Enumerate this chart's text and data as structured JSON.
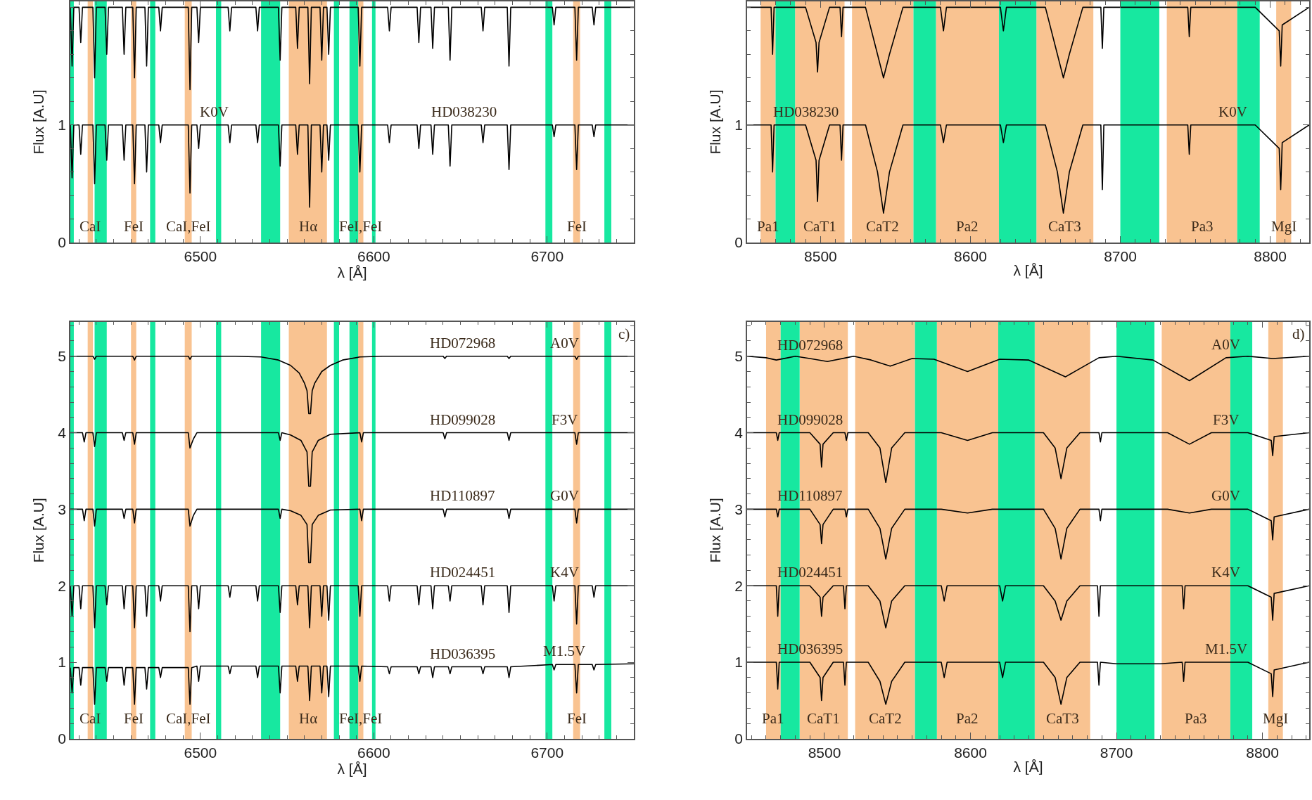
{
  "chart_data": [
    {
      "type": "line",
      "xlabel": "λ [Å]",
      "ylabel": "Flux [A.U]",
      "xlim": [
        6425,
        6750
      ],
      "ylim": [
        0,
        2.05
      ],
      "xticks": [
        6500,
        6600,
        6700
      ],
      "yticks": [
        0,
        1
      ],
      "grid": false,
      "marker": "none",
      "line_style": "solid",
      "series": [
        {
          "color": "#000000",
          "x": [
            6425,
            6426,
            6427,
            6430,
            6431,
            6432,
            6438,
            6439,
            6440,
            6445,
            6446,
            6447,
            6455,
            6456,
            6457,
            6461,
            6462,
            6463,
            6468,
            6469,
            6470,
            6476,
            6477,
            6478,
            6493,
            6494,
            6495,
            6498,
            6499,
            6500,
            6516,
            6517,
            6518,
            6532,
            6533,
            6534,
            6545,
            6546,
            6547,
            6555,
            6556,
            6557,
            6562,
            6563,
            6564,
            6569,
            6570,
            6571,
            6573,
            6574,
            6575,
            6591,
            6592,
            6593,
            6608,
            6609,
            6610,
            6625,
            6626,
            6627,
            6633,
            6634,
            6635,
            6643,
            6644,
            6645,
            6662,
            6663,
            6664,
            6677,
            6678,
            6679,
            6703,
            6704,
            6705,
            6716,
            6717,
            6718,
            6726,
            6727,
            6728,
            6750
          ],
          "values": [
            2,
            1.5,
            2,
            2,
            1.7,
            2,
            2,
            1.4,
            2,
            2,
            1.6,
            2,
            2,
            1.6,
            2,
            2,
            1.4,
            2,
            2,
            1.5,
            2,
            2,
            1.8,
            2,
            2,
            1.3,
            2,
            2,
            1.7,
            2,
            2,
            1.8,
            2,
            2,
            1.8,
            2,
            2,
            1.55,
            2,
            2,
            1.65,
            2,
            2,
            1.35,
            2,
            2,
            1.55,
            2,
            2,
            1.6,
            2,
            2,
            1.5,
            2,
            2,
            1.8,
            2,
            2,
            1.7,
            2,
            2,
            1.65,
            2,
            2,
            1.55,
            2,
            2,
            1.8,
            2,
            2,
            1.5,
            2,
            2,
            1.85,
            2,
            2,
            1.55,
            2,
            2,
            1.85,
            2,
            2
          ]
        },
        {
          "color": "#000000",
          "x": [
            6425,
            6426,
            6427,
            6430,
            6431,
            6432,
            6438,
            6439,
            6440,
            6445,
            6446,
            6447,
            6455,
            6456,
            6457,
            6461,
            6462,
            6463,
            6468,
            6469,
            6470,
            6476,
            6477,
            6478,
            6493,
            6494,
            6495,
            6498,
            6499,
            6500,
            6516,
            6517,
            6518,
            6532,
            6533,
            6534,
            6545,
            6546,
            6547,
            6555,
            6556,
            6557,
            6562,
            6563,
            6564,
            6569,
            6570,
            6571,
            6573,
            6574,
            6575,
            6591,
            6592,
            6593,
            6608,
            6609,
            6610,
            6625,
            6626,
            6627,
            6633,
            6634,
            6635,
            6643,
            6644,
            6645,
            6662,
            6663,
            6664,
            6677,
            6678,
            6679,
            6703,
            6704,
            6705,
            6716,
            6717,
            6718,
            6726,
            6727,
            6728,
            6750
          ],
          "values": [
            1,
            0.55,
            1,
            1,
            0.75,
            1,
            1,
            0.5,
            1,
            1,
            0.7,
            1,
            1,
            0.7,
            1,
            1,
            0.5,
            1,
            1,
            0.6,
            1,
            1,
            0.85,
            1,
            1,
            0.42,
            1,
            1,
            0.8,
            1,
            1,
            0.85,
            1,
            1,
            0.85,
            1,
            1,
            0.65,
            1,
            1,
            0.75,
            1,
            1,
            0.3,
            1,
            1,
            0.6,
            1,
            1,
            0.7,
            1,
            1,
            0.6,
            1,
            1,
            0.85,
            1,
            1,
            0.8,
            1,
            1,
            0.75,
            1,
            1,
            0.65,
            1,
            1,
            0.85,
            1,
            1,
            0.62,
            1,
            1,
            0.9,
            1,
            1,
            0.62,
            1,
            1,
            0.9,
            1,
            1
          ]
        }
      ],
      "bands": [
        {
          "axis": "x",
          "from": 6435,
          "to": 6438,
          "color": "#f9c391",
          "label": "CaI"
        },
        {
          "axis": "x",
          "from": 6460,
          "to": 6463,
          "color": "#f9c391",
          "label": "FeI"
        },
        {
          "axis": "x",
          "from": 6491,
          "to": 6495,
          "color": "#f9c391",
          "label": "CaI,FeI"
        },
        {
          "axis": "x",
          "from": 6551,
          "to": 6573,
          "color": "#f9c391",
          "label": "Hα"
        },
        {
          "axis": "x",
          "from": 6591,
          "to": 6594,
          "color": "#f9c391",
          "label": "FeI,FeI"
        },
        {
          "axis": "x",
          "from": 6715,
          "to": 6719,
          "color": "#f9c391",
          "label": "FeI"
        },
        {
          "axis": "x",
          "from": 6425,
          "to": 6427,
          "color": "#17e8a0"
        },
        {
          "axis": "x",
          "from": 6439,
          "to": 6446,
          "color": "#17e8a0"
        },
        {
          "axis": "x",
          "from": 6471,
          "to": 6474,
          "color": "#17e8a0"
        },
        {
          "axis": "x",
          "from": 6509,
          "to": 6512,
          "color": "#17e8a0"
        },
        {
          "axis": "x",
          "from": 6535,
          "to": 6546,
          "color": "#17e8a0"
        },
        {
          "axis": "x",
          "from": 6577,
          "to": 6580,
          "color": "#17e8a0"
        },
        {
          "axis": "x",
          "from": 6586,
          "to": 6591,
          "color": "#17e8a0"
        },
        {
          "axis": "x",
          "from": 6599,
          "to": 6601,
          "color": "#17e8a0"
        },
        {
          "axis": "x",
          "from": 6699,
          "to": 6703,
          "color": "#17e8a0"
        },
        {
          "axis": "x",
          "from": 6733,
          "to": 6737,
          "color": "#17e8a0"
        }
      ],
      "annotations": [
        {
          "text": "K0V",
          "x": 6508,
          "y": 1
        },
        {
          "text": "HD038230",
          "x": 6652,
          "y": 1
        }
      ]
    },
    {
      "type": "line",
      "xlabel": "λ [Å]",
      "ylabel": "Flux [A.U]",
      "xlim": [
        8451,
        8826
      ],
      "ylim": [
        0,
        2.05
      ],
      "xticks": [
        8500,
        8600,
        8700,
        8800
      ],
      "yticks": [
        0,
        1
      ],
      "grid": false,
      "marker": "none",
      "line_style": "solid",
      "series": [
        {
          "color": "#000000",
          "x": [
            8451,
            8467,
            8468,
            8469,
            8490,
            8497,
            8498,
            8499,
            8506,
            8513,
            8514,
            8515,
            8530,
            8538,
            8542,
            8546,
            8555,
            8580,
            8582,
            8584,
            8620,
            8622,
            8624,
            8650,
            8658,
            8662,
            8666,
            8675,
            8687,
            8688,
            8689,
            8700,
            8730,
            8745,
            8746,
            8747,
            8790,
            8806,
            8807,
            8808,
            8826
          ],
          "values": [
            2,
            2,
            1.6,
            2,
            2,
            1.7,
            1.45,
            1.7,
            2,
            2,
            1.75,
            2,
            2,
            1.6,
            1.4,
            1.6,
            2,
            2,
            1.8,
            2,
            2,
            1.8,
            2,
            2,
            1.6,
            1.4,
            1.6,
            2,
            2,
            1.65,
            2,
            2,
            2,
            2,
            1.75,
            2,
            2,
            1.8,
            1.5,
            1.85,
            2
          ]
        },
        {
          "color": "#000000",
          "x": [
            8451,
            8467,
            8468,
            8469,
            8490,
            8497,
            8498,
            8499,
            8506,
            8513,
            8514,
            8515,
            8530,
            8538,
            8542,
            8546,
            8555,
            8580,
            8582,
            8584,
            8620,
            8622,
            8624,
            8650,
            8658,
            8662,
            8666,
            8675,
            8687,
            8688,
            8689,
            8700,
            8730,
            8745,
            8746,
            8747,
            8790,
            8806,
            8807,
            8808,
            8826
          ],
          "values": [
            1,
            1,
            0.6,
            1,
            1,
            0.7,
            0.35,
            0.7,
            1,
            1,
            0.7,
            1,
            1,
            0.6,
            0.25,
            0.6,
            1,
            1,
            0.85,
            1,
            1,
            0.85,
            1,
            1,
            0.6,
            0.25,
            0.6,
            1,
            1,
            0.45,
            1,
            1,
            1,
            1,
            0.75,
            1,
            1,
            0.8,
            0.45,
            0.85,
            1
          ]
        }
      ],
      "bands": [
        {
          "axis": "x",
          "from": 8460,
          "to": 8470,
          "color": "#f9c391",
          "label": "Pa1"
        },
        {
          "axis": "x",
          "from": 8483,
          "to": 8516,
          "color": "#f9c391",
          "label": "CaT1"
        },
        {
          "axis": "x",
          "from": 8521,
          "to": 8562,
          "color": "#f9c391",
          "label": "CaT2"
        },
        {
          "axis": "x",
          "from": 8577,
          "to": 8619,
          "color": "#f9c391",
          "label": "Pa2"
        },
        {
          "axis": "x",
          "from": 8644,
          "to": 8682,
          "color": "#f9c391",
          "label": "CaT3"
        },
        {
          "axis": "x",
          "from": 8731,
          "to": 8778,
          "color": "#f9c391",
          "label": "Pa3"
        },
        {
          "axis": "x",
          "from": 8804,
          "to": 8814,
          "color": "#f9c391",
          "label": "MgI"
        },
        {
          "axis": "x",
          "from": 8470,
          "to": 8483,
          "color": "#17e8a0"
        },
        {
          "axis": "x",
          "from": 8562,
          "to": 8577,
          "color": "#17e8a0"
        },
        {
          "axis": "x",
          "from": 8619,
          "to": 8644,
          "color": "#17e8a0"
        },
        {
          "axis": "x",
          "from": 8700,
          "to": 8726,
          "color": "#17e8a0"
        },
        {
          "axis": "x",
          "from": 8778,
          "to": 8793,
          "color": "#17e8a0"
        }
      ],
      "annotations": [
        {
          "text": "HD038230",
          "x": 8490,
          "y": 1
        },
        {
          "text": "K0V",
          "x": 8775,
          "y": 1
        }
      ]
    },
    {
      "type": "line",
      "xlabel": "λ [Å]",
      "ylabel": "Flux [A.U]",
      "xlim": [
        6425,
        6750
      ],
      "ylim": [
        0,
        5.45
      ],
      "xticks": [
        6500,
        6600,
        6700
      ],
      "yticks": [
        0,
        1,
        2,
        3,
        4,
        5
      ],
      "grid": false,
      "marker": "none",
      "line_style": "solid",
      "series": [
        {
          "color": "#000000",
          "x": [
            6425,
            6438,
            6439,
            6440,
            6461,
            6462,
            6463,
            6493,
            6494,
            6495,
            6520,
            6535,
            6545,
            6552,
            6557,
            6560,
            6561.5,
            6562.5,
            6563.5,
            6564.5,
            6566,
            6570,
            6575,
            6582,
            6592,
            6605,
            6640,
            6641,
            6642,
            6677,
            6678,
            6679,
            6716,
            6717,
            6718,
            6750
          ],
          "values": [
            5,
            5,
            4.96,
            5,
            5,
            4.95,
            5,
            5,
            4.96,
            5,
            5,
            4.99,
            4.95,
            4.88,
            4.78,
            4.65,
            4.55,
            4.25,
            4.25,
            4.55,
            4.65,
            4.8,
            4.88,
            4.95,
            4.99,
            5,
            5,
            4.97,
            5,
            5,
            4.97,
            5,
            5,
            4.96,
            5,
            5
          ]
        },
        {
          "color": "#000000",
          "x": [
            6425,
            6432,
            6433,
            6434,
            6438,
            6439,
            6440,
            6455,
            6456,
            6457,
            6461,
            6462,
            6463,
            6493,
            6494,
            6496,
            6498,
            6520,
            6545,
            6546,
            6547,
            6552,
            6558,
            6561.5,
            6562.5,
            6563.5,
            6564.5,
            6568,
            6575,
            6592,
            6593,
            6594,
            6640,
            6641,
            6642,
            6677,
            6678,
            6679,
            6716,
            6717,
            6718,
            6750
          ],
          "values": [
            4,
            4,
            3.88,
            4,
            4,
            3.82,
            4,
            4,
            3.9,
            4,
            4,
            3.85,
            4,
            4,
            3.8,
            3.92,
            4,
            4,
            4,
            3.9,
            4,
            3.97,
            3.9,
            3.75,
            3.3,
            3.3,
            3.75,
            3.9,
            3.98,
            4,
            3.88,
            4,
            4,
            3.92,
            4,
            4,
            3.9,
            4,
            4,
            3.85,
            4,
            4
          ]
        },
        {
          "color": "#000000",
          "x": [
            6425,
            6432,
            6433,
            6434,
            6438,
            6439,
            6440,
            6455,
            6456,
            6457,
            6461,
            6462,
            6463,
            6493,
            6494,
            6496,
            6498,
            6520,
            6545,
            6546,
            6547,
            6552,
            6558,
            6561.5,
            6562.5,
            6563.5,
            6564.5,
            6568,
            6575,
            6592,
            6593,
            6594,
            6640,
            6641,
            6642,
            6677,
            6678,
            6679,
            6716,
            6717,
            6718,
            6750
          ],
          "values": [
            3,
            3,
            2.85,
            3,
            3,
            2.78,
            3,
            3,
            2.88,
            3,
            3,
            2.82,
            3,
            3,
            2.78,
            2.92,
            3,
            3,
            3,
            2.88,
            3,
            2.98,
            2.92,
            2.8,
            2.3,
            2.3,
            2.8,
            2.92,
            2.99,
            3,
            2.85,
            3,
            3,
            2.9,
            3,
            3,
            2.88,
            3,
            3,
            2.82,
            3,
            3
          ]
        },
        {
          "color": "#000000",
          "x": [
            6425,
            6426,
            6427,
            6430,
            6431,
            6432,
            6438,
            6439,
            6440,
            6445,
            6446,
            6447,
            6455,
            6456,
            6457,
            6461,
            6462,
            6463,
            6468,
            6469,
            6470,
            6476,
            6477,
            6478,
            6493,
            6494,
            6495,
            6498,
            6499,
            6500,
            6516,
            6517,
            6518,
            6532,
            6533,
            6534,
            6545,
            6546,
            6547,
            6555,
            6556,
            6557,
            6562,
            6563,
            6564,
            6569,
            6570,
            6571,
            6573,
            6574,
            6575,
            6591,
            6592,
            6593,
            6608,
            6609,
            6610,
            6625,
            6626,
            6627,
            6633,
            6634,
            6635,
            6643,
            6644,
            6645,
            6662,
            6663,
            6664,
            6677,
            6678,
            6679,
            6703,
            6704,
            6705,
            6716,
            6717,
            6718,
            6726,
            6727,
            6728,
            6750
          ],
          "values": [
            2,
            1.6,
            2,
            2,
            1.7,
            2,
            2,
            1.45,
            2,
            2,
            1.75,
            2,
            2,
            1.7,
            2,
            2,
            1.45,
            2,
            2,
            1.6,
            2,
            2,
            1.8,
            2,
            2,
            1.4,
            2,
            2,
            1.7,
            2,
            2,
            1.85,
            2,
            2,
            1.8,
            2,
            2,
            1.65,
            2,
            2,
            1.75,
            2,
            2,
            1.45,
            2,
            2,
            1.6,
            2,
            2,
            1.55,
            2,
            2,
            1.6,
            2,
            2,
            1.8,
            2,
            2,
            1.75,
            2,
            2,
            1.7,
            2,
            2,
            1.8,
            2,
            2,
            1.75,
            2,
            2,
            1.65,
            2,
            2,
            1.8,
            2,
            2,
            1.5,
            2,
            2,
            1.85,
            2,
            2
          ]
        },
        {
          "color": "#000000",
          "x": [
            6425,
            6426,
            6427,
            6430,
            6431,
            6432,
            6438,
            6439,
            6440,
            6445,
            6446,
            6447,
            6455,
            6456,
            6457,
            6461,
            6462,
            6463,
            6468,
            6469,
            6470,
            6476,
            6477,
            6478,
            6493,
            6494,
            6495,
            6498,
            6499,
            6500,
            6516,
            6517,
            6518,
            6532,
            6533,
            6534,
            6545,
            6546,
            6547,
            6555,
            6556,
            6557,
            6562,
            6563,
            6564,
            6569,
            6570,
            6571,
            6573,
            6574,
            6575,
            6591,
            6592,
            6593,
            6608,
            6609,
            6610,
            6625,
            6626,
            6627,
            6633,
            6634,
            6635,
            6643,
            6644,
            6645,
            6662,
            6663,
            6664,
            6677,
            6678,
            6679,
            6703,
            6704,
            6705,
            6716,
            6717,
            6718,
            6726,
            6727,
            6728,
            6750
          ],
          "values": [
            0.93,
            0.6,
            0.93,
            0.93,
            0.7,
            0.93,
            0.93,
            0.45,
            0.93,
            0.93,
            0.75,
            0.93,
            0.93,
            0.7,
            0.93,
            0.93,
            0.45,
            0.93,
            0.93,
            0.65,
            0.93,
            0.93,
            0.8,
            0.93,
            0.93,
            0.45,
            0.93,
            0.95,
            0.75,
            0.95,
            0.95,
            0.85,
            0.95,
            0.95,
            0.8,
            0.95,
            0.95,
            0.6,
            0.95,
            0.95,
            0.75,
            0.95,
            0.95,
            0.5,
            0.95,
            0.95,
            0.6,
            0.95,
            0.95,
            0.55,
            0.95,
            0.95,
            0.75,
            0.95,
            0.94,
            0.85,
            0.94,
            0.94,
            0.85,
            0.94,
            0.94,
            0.8,
            0.94,
            0.94,
            0.85,
            0.94,
            0.94,
            0.85,
            0.94,
            0.94,
            0.8,
            0.94,
            0.97,
            0.9,
            0.97,
            0.97,
            0.6,
            0.97,
            0.97,
            0.9,
            0.97,
            0.98
          ]
        }
      ],
      "bands": [
        {
          "axis": "x",
          "from": 6435,
          "to": 6438,
          "color": "#f9c391",
          "label": "CaI"
        },
        {
          "axis": "x",
          "from": 6460,
          "to": 6463,
          "color": "#f9c391",
          "label": "FeI"
        },
        {
          "axis": "x",
          "from": 6491,
          "to": 6495,
          "color": "#f9c391",
          "label": "CaI,FeI"
        },
        {
          "axis": "x",
          "from": 6551,
          "to": 6573,
          "color": "#f9c391",
          "label": "Hα"
        },
        {
          "axis": "x",
          "from": 6591,
          "to": 6594,
          "color": "#f9c391",
          "label": "FeI,FeI"
        },
        {
          "axis": "x",
          "from": 6715,
          "to": 6719,
          "color": "#f9c391",
          "label": "FeI"
        },
        {
          "axis": "x",
          "from": 6425,
          "to": 6427,
          "color": "#17e8a0"
        },
        {
          "axis": "x",
          "from": 6439,
          "to": 6446,
          "color": "#17e8a0"
        },
        {
          "axis": "x",
          "from": 6471,
          "to": 6474,
          "color": "#17e8a0"
        },
        {
          "axis": "x",
          "from": 6509,
          "to": 6512,
          "color": "#17e8a0"
        },
        {
          "axis": "x",
          "from": 6535,
          "to": 6546,
          "color": "#17e8a0"
        },
        {
          "axis": "x",
          "from": 6577,
          "to": 6580,
          "color": "#17e8a0"
        },
        {
          "axis": "x",
          "from": 6586,
          "to": 6591,
          "color": "#17e8a0"
        },
        {
          "axis": "x",
          "from": 6599,
          "to": 6601,
          "color": "#17e8a0"
        },
        {
          "axis": "x",
          "from": 6699,
          "to": 6703,
          "color": "#17e8a0"
        },
        {
          "axis": "x",
          "from": 6733,
          "to": 6737,
          "color": "#17e8a0"
        }
      ],
      "annotations": [
        {
          "text": "HD072968",
          "x": 6651,
          "y": 5
        },
        {
          "text": "A0V",
          "x": 6710,
          "y": 5
        },
        "c)",
        {
          "text": "HD099028",
          "x": 6651,
          "y": 4
        },
        {
          "text": "F3V",
          "x": 6710,
          "y": 4
        },
        {
          "text": "HD110897",
          "x": 6651,
          "y": 3
        },
        {
          "text": "G0V",
          "x": 6710,
          "y": 3
        },
        {
          "text": "HD024451",
          "x": 6651,
          "y": 2
        },
        {
          "text": "K4V",
          "x": 6710,
          "y": 2
        },
        {
          "text": "HD036395",
          "x": 6651,
          "y": 0.94
        },
        {
          "text": "M1.5V",
          "x": 6710,
          "y": 0.97
        }
      ]
    },
    {
      "type": "line",
      "xlabel": "λ [Å]",
      "ylabel": "Flux [A.U]",
      "xlim": [
        8447,
        8832
      ],
      "ylim": [
        0,
        5.45
      ],
      "xticks": [
        8500,
        8600,
        8700,
        8800
      ],
      "yticks": [
        0,
        1,
        2,
        3,
        4,
        5
      ],
      "grid": false,
      "marker": "none",
      "line_style": "solid",
      "series": [
        {
          "color": "#000000",
          "x": [
            8447,
            8460,
            8467,
            8475,
            8480,
            8490,
            8502,
            8515,
            8520,
            8532,
            8545,
            8560,
            8575,
            8598,
            8620,
            8640,
            8665,
            8688,
            8700,
            8725,
            8750,
            8775,
            8790,
            8807,
            8832
          ],
          "values": [
            5,
            4.98,
            4.95,
            4.98,
            5,
            4.97,
            4.93,
            4.98,
            5,
            4.95,
            4.87,
            4.97,
            4.96,
            4.8,
            4.96,
            4.95,
            4.73,
            4.98,
            5,
            4.95,
            4.68,
            4.98,
            5,
            4.97,
            5
          ]
        },
        {
          "color": "#000000",
          "x": [
            8447,
            8467,
            8468,
            8469,
            8490,
            8497,
            8498,
            8499,
            8506,
            8514,
            8515,
            8516,
            8530,
            8538,
            8542,
            8546,
            8555,
            8580,
            8598,
            8615,
            8650,
            8658,
            8662,
            8666,
            8675,
            8688,
            8689,
            8690,
            8735,
            8750,
            8765,
            8790,
            8806,
            8807,
            8808,
            8832
          ],
          "values": [
            4,
            4,
            3.9,
            4,
            4,
            3.85,
            3.55,
            3.85,
            4,
            4,
            3.9,
            4,
            4,
            3.8,
            3.35,
            3.8,
            4,
            4,
            3.9,
            4,
            4,
            3.8,
            3.4,
            3.8,
            4,
            4,
            3.88,
            4,
            4,
            3.85,
            4,
            4,
            3.9,
            3.7,
            3.95,
            4
          ]
        },
        {
          "color": "#000000",
          "x": [
            8447,
            8467,
            8468,
            8469,
            8490,
            8497,
            8498,
            8499,
            8506,
            8514,
            8515,
            8516,
            8530,
            8538,
            8542,
            8546,
            8555,
            8580,
            8598,
            8615,
            8650,
            8658,
            8662,
            8666,
            8675,
            8688,
            8689,
            8690,
            8735,
            8750,
            8765,
            8790,
            8806,
            8807,
            8808,
            8832
          ],
          "values": [
            3,
            3,
            2.9,
            3,
            3,
            2.8,
            2.55,
            2.8,
            3,
            3,
            2.9,
            3,
            3,
            2.75,
            2.35,
            2.75,
            3,
            3,
            2.95,
            3,
            3,
            2.75,
            2.35,
            2.75,
            3,
            3,
            2.85,
            3,
            3,
            2.95,
            3,
            3,
            2.85,
            2.6,
            2.9,
            3
          ]
        },
        {
          "color": "#000000",
          "x": [
            8447,
            8467,
            8468,
            8469,
            8490,
            8497,
            8498,
            8499,
            8506,
            8513,
            8514,
            8515,
            8530,
            8538,
            8542,
            8546,
            8555,
            8580,
            8582,
            8584,
            8620,
            8622,
            8624,
            8650,
            8658,
            8662,
            8666,
            8675,
            8687,
            8688,
            8689,
            8700,
            8730,
            8745,
            8746,
            8747,
            8790,
            8806,
            8807,
            8808,
            8832
          ],
          "values": [
            2,
            2,
            1.6,
            2,
            2,
            1.85,
            1.6,
            1.85,
            2,
            2,
            1.7,
            2,
            2,
            1.8,
            1.45,
            1.8,
            2,
            2,
            1.8,
            2,
            2,
            1.8,
            2,
            2,
            1.8,
            1.55,
            1.8,
            2,
            2,
            1.6,
            2,
            2,
            2,
            2,
            1.7,
            2,
            2,
            1.85,
            1.55,
            1.9,
            2
          ]
        },
        {
          "color": "#000000",
          "x": [
            8447,
            8467,
            8468,
            8469,
            8490,
            8497,
            8498,
            8499,
            8506,
            8513,
            8514,
            8515,
            8530,
            8538,
            8542,
            8546,
            8555,
            8580,
            8582,
            8584,
            8620,
            8622,
            8624,
            8650,
            8658,
            8662,
            8666,
            8675,
            8687,
            8688,
            8689,
            8700,
            8730,
            8745,
            8746,
            8747,
            8790,
            8806,
            8807,
            8808,
            8832
          ],
          "values": [
            1,
            1,
            0.65,
            1,
            1,
            0.8,
            0.5,
            0.8,
            1,
            1,
            0.7,
            1,
            1,
            0.75,
            0.45,
            0.75,
            1,
            1,
            0.8,
            1,
            1,
            0.8,
            1,
            1,
            0.8,
            0.45,
            0.8,
            1,
            1,
            0.7,
            1,
            0.98,
            0.98,
            1,
            0.75,
            1,
            1,
            0.85,
            0.55,
            0.9,
            1
          ]
        }
      ],
      "bands": [
        {
          "axis": "x",
          "from": 8460,
          "to": 8470,
          "color": "#f9c391",
          "label": "Pa1"
        },
        {
          "axis": "x",
          "from": 8483,
          "to": 8516,
          "color": "#f9c391",
          "label": "CaT1"
        },
        {
          "axis": "x",
          "from": 8521,
          "to": 8562,
          "color": "#f9c391",
          "label": "CaT2"
        },
        {
          "axis": "x",
          "from": 8577,
          "to": 8619,
          "color": "#f9c391",
          "label": "Pa2"
        },
        {
          "axis": "x",
          "from": 8644,
          "to": 8682,
          "color": "#f9c391",
          "label": "CaT3"
        },
        {
          "axis": "x",
          "from": 8731,
          "to": 8778,
          "color": "#f9c391",
          "label": "Pa3"
        },
        {
          "axis": "x",
          "from": 8804,
          "to": 8814,
          "color": "#f9c391",
          "label": "MgI"
        },
        {
          "axis": "x",
          "from": 8470,
          "to": 8483,
          "color": "#17e8a0"
        },
        {
          "axis": "x",
          "from": 8562,
          "to": 8577,
          "color": "#17e8a0"
        },
        {
          "axis": "x",
          "from": 8619,
          "to": 8644,
          "color": "#17e8a0"
        },
        {
          "axis": "x",
          "from": 8700,
          "to": 8726,
          "color": "#17e8a0"
        },
        {
          "axis": "x",
          "from": 8778,
          "to": 8793,
          "color": "#17e8a0"
        }
      ],
      "annotations": [
        {
          "text": "HD072968",
          "x": 8490,
          "y": 4.97
        },
        {
          "text": "A0V",
          "x": 8775,
          "y": 4.98
        },
        "d)",
        {
          "text": "HD099028",
          "x": 8490,
          "y": 4
        },
        {
          "text": "F3V",
          "x": 8775,
          "y": 4
        },
        {
          "text": "HD110897",
          "x": 8490,
          "y": 3
        },
        {
          "text": "G0V",
          "x": 8775,
          "y": 3
        },
        {
          "text": "HD024451",
          "x": 8490,
          "y": 2
        },
        {
          "text": "K4V",
          "x": 8775,
          "y": 2
        },
        {
          "text": "HD036395",
          "x": 8490,
          "y": 1
        },
        {
          "text": "M1.5V",
          "x": 8775,
          "y": 1
        }
      ]
    }
  ]
}
